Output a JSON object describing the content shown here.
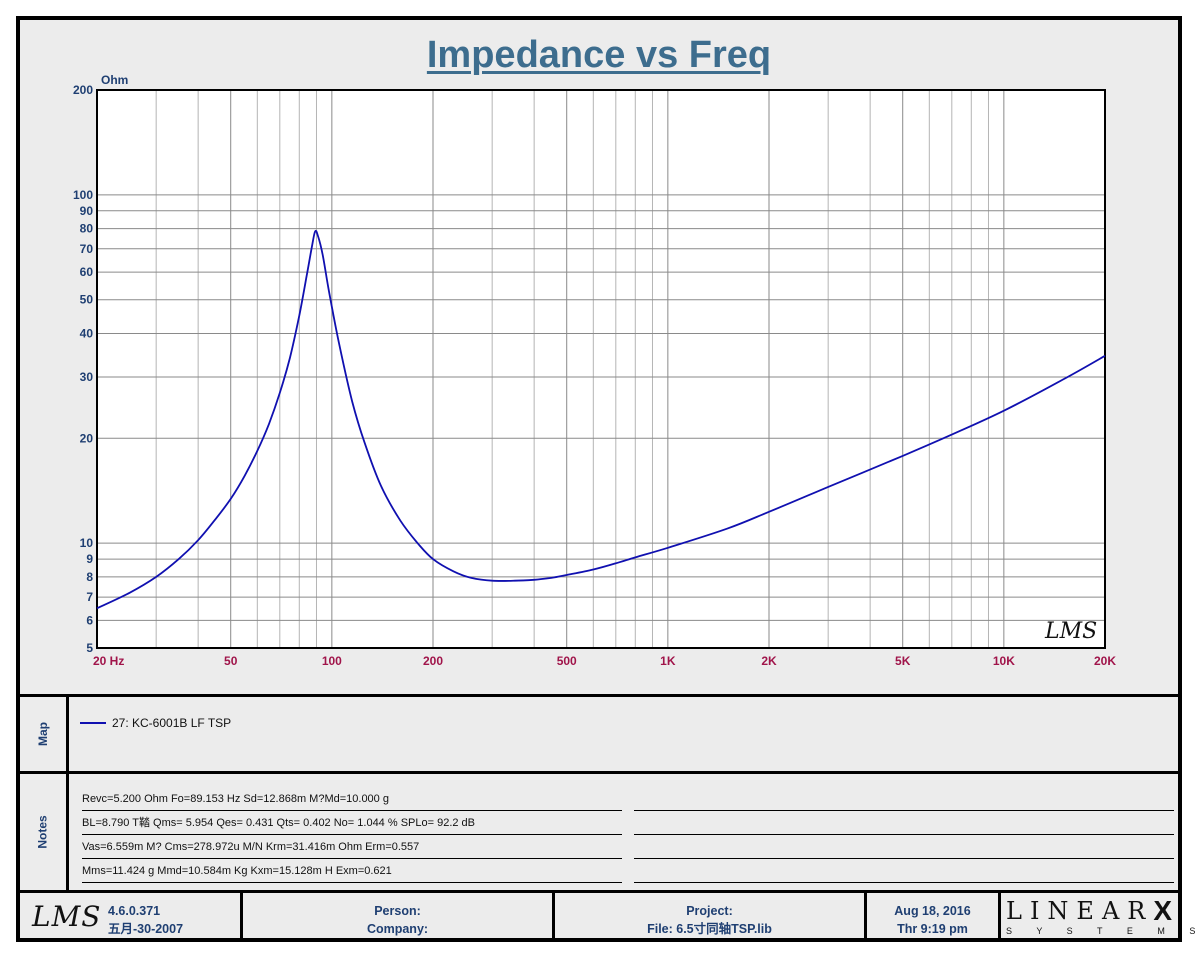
{
  "chart_data": {
    "type": "line",
    "title": "Impedance vs Freq",
    "ylabel": "Ohm",
    "xscale": "log",
    "yscale": "log",
    "xlim": [
      20,
      20000
    ],
    "ylim": [
      5,
      200
    ],
    "grid": true,
    "x_tick_labels": [
      {
        "value": 20,
        "label": "20  Hz"
      },
      {
        "value": 50,
        "label": "50"
      },
      {
        "value": 100,
        "label": "100"
      },
      {
        "value": 200,
        "label": "200"
      },
      {
        "value": 500,
        "label": "500"
      },
      {
        "value": 1000,
        "label": "1K"
      },
      {
        "value": 2000,
        "label": "2K"
      },
      {
        "value": 5000,
        "label": "5K"
      },
      {
        "value": 10000,
        "label": "10K"
      },
      {
        "value": 20000,
        "label": "20K"
      }
    ],
    "y_tick_labels": [
      {
        "value": 200,
        "label": "200"
      },
      {
        "value": 100,
        "label": "100"
      },
      {
        "value": 90,
        "label": "90"
      },
      {
        "value": 80,
        "label": "80"
      },
      {
        "value": 70,
        "label": "70"
      },
      {
        "value": 60,
        "label": "60"
      },
      {
        "value": 50,
        "label": "50"
      },
      {
        "value": 40,
        "label": "40"
      },
      {
        "value": 30,
        "label": "30"
      },
      {
        "value": 20,
        "label": "20"
      },
      {
        "value": 10,
        "label": "10"
      },
      {
        "value": 9,
        "label": "9"
      },
      {
        "value": 8,
        "label": "8"
      },
      {
        "value": 7,
        "label": "7"
      },
      {
        "value": 6,
        "label": "6"
      },
      {
        "value": 5,
        "label": "5"
      }
    ],
    "series": [
      {
        "name": "27: KC-6001B    LF  TSP",
        "color": "#1010b0",
        "x": [
          20,
          25,
          30,
          35,
          40,
          45,
          50,
          55,
          60,
          65,
          70,
          75,
          80,
          84,
          87,
          89.15,
          91,
          94,
          98,
          105,
          115,
          125,
          140,
          160,
          180,
          200,
          230,
          260,
          300,
          350,
          400,
          450,
          500,
          600,
          700,
          800,
          1000,
          1500,
          2000,
          3000,
          5000,
          7000,
          10000,
          15000,
          20000
        ],
        "y": [
          6.5,
          7.2,
          8.0,
          9.0,
          10.2,
          11.7,
          13.4,
          15.6,
          18.4,
          22.0,
          27.0,
          34.0,
          45.0,
          58.0,
          70.0,
          78.5,
          76.0,
          67.0,
          53.0,
          37.5,
          25.5,
          19.5,
          14.6,
          11.6,
          10.0,
          9.0,
          8.3,
          7.95,
          7.8,
          7.8,
          7.85,
          7.95,
          8.1,
          8.4,
          8.75,
          9.1,
          9.7,
          11.0,
          12.3,
          14.5,
          17.8,
          20.5,
          24.0,
          29.5,
          34.5
        ]
      }
    ]
  },
  "watermark": "LMS",
  "map": {
    "label": "Map",
    "legend": "27: KC-6001B    LF  TSP",
    "color": "#1010b0"
  },
  "notes": {
    "label": "Notes",
    "rows": [
      "Revc=5.200 Ohm  Fo=89.153 Hz  Sd=12.868m M?Md=10.000 g",
      "BL=8.790 T鞜  Qms= 5.954  Qes= 0.431  Qts= 0.402  No= 1.044 %  SPLo= 92.2 dB",
      "Vas=6.559m M? Cms=278.972u M/N  Krm=31.416m Ohm  Erm=0.557",
      "Mms=11.424 g  Mmd=10.584m Kg  Kxm=15.128m H  Exm=0.621"
    ]
  },
  "footer": {
    "logo": "LMS",
    "version": "4.6.0.371",
    "build_date": "五月-30-2007",
    "person": "Person:",
    "company": "Company:",
    "project": "Project:",
    "file": "File: 6.5寸同轴TSP.lib",
    "date": "Aug 18, 2016",
    "time": "Thr  9:19 pm",
    "brand": "LINEAR",
    "brand_x": "X",
    "brand_sub": "S Y S T E M S"
  }
}
